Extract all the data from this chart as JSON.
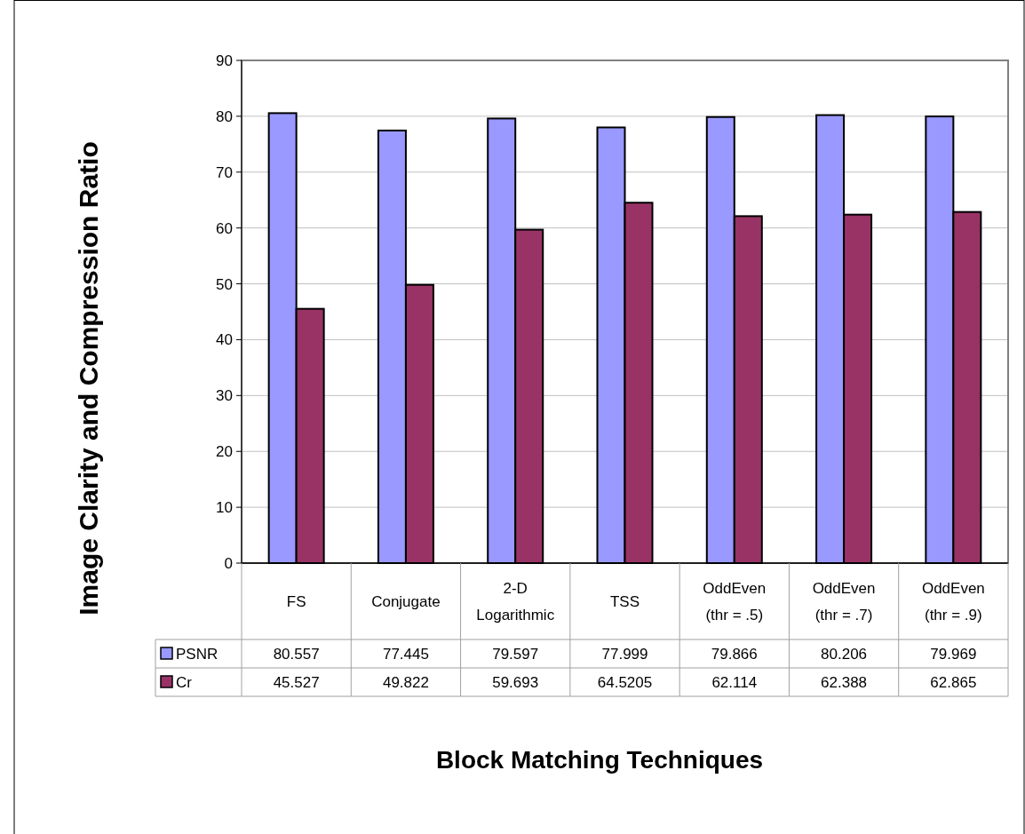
{
  "chart_data": {
    "type": "bar",
    "xlabel": "Block Matching Techniques",
    "ylabel": "Image Clarity and Compression Ratio",
    "categories": [
      "FS",
      "Conjugate",
      "2-D Logarithmic",
      "TSS",
      "OddEven (thr = .5)",
      "OddEven (thr = .7)",
      "OddEven (thr = .9)"
    ],
    "series": [
      {
        "name": "PSNR",
        "color": "#9999ff",
        "values": [
          80.557,
          77.445,
          79.597,
          77.999,
          79.866,
          80.206,
          79.969
        ]
      },
      {
        "name": "Cr",
        "color": "#993366",
        "values": [
          45.527,
          49.822,
          59.693,
          64.5205,
          62.114,
          62.388,
          62.865
        ]
      }
    ],
    "ylim": [
      0,
      90
    ],
    "yticks": [
      0,
      10,
      20,
      30,
      40,
      50,
      60,
      70,
      80,
      90
    ],
    "grid": "y",
    "legend": "bottom left",
    "data_labels": true
  }
}
